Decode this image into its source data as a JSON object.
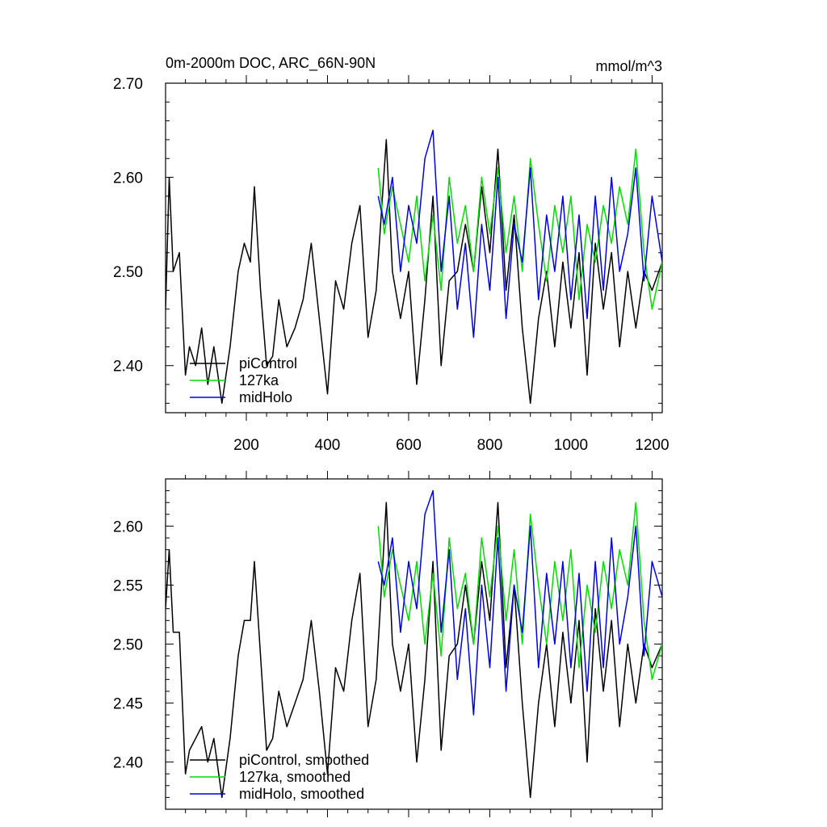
{
  "chart_data": [
    {
      "type": "line",
      "title": "0m-2000m DOC, ARC_66N-90N",
      "units_label": "mmol/m^3",
      "xlim": [
        1,
        1225
      ],
      "ylim": [
        2.35,
        2.7
      ],
      "x_ticks": [
        200,
        400,
        600,
        800,
        1000,
        1200
      ],
      "x_tick_labels": [
        "200",
        "400",
        "600",
        "800",
        "1000",
        "1200"
      ],
      "y_ticks": [
        2.4,
        2.5,
        2.6,
        2.7
      ],
      "y_tick_labels": [
        "2.40",
        "2.50",
        "2.60",
        "2.70"
      ],
      "legend": [
        "piControl",
        "127ka",
        "midHolo"
      ],
      "series": [
        {
          "name": "piControl",
          "color": "#000000",
          "x": [
            1,
            10,
            20,
            35,
            50,
            60,
            75,
            90,
            105,
            120,
            140,
            160,
            180,
            195,
            210,
            220,
            235,
            250,
            265,
            280,
            300,
            320,
            340,
            360,
            380,
            400,
            420,
            440,
            460,
            480,
            500,
            520,
            545,
            560,
            580,
            600,
            620,
            640,
            660,
            680,
            700,
            720,
            740,
            760,
            780,
            800,
            820,
            840,
            860,
            880,
            900,
            920,
            940,
            960,
            980,
            1000,
            1020,
            1040,
            1060,
            1080,
            1100,
            1120,
            1140,
            1160,
            1180,
            1200,
            1225
          ],
          "values": [
            2.46,
            2.6,
            2.5,
            2.52,
            2.39,
            2.42,
            2.4,
            2.44,
            2.38,
            2.42,
            2.36,
            2.42,
            2.5,
            2.53,
            2.51,
            2.59,
            2.48,
            2.4,
            2.41,
            2.47,
            2.42,
            2.44,
            2.47,
            2.53,
            2.45,
            2.37,
            2.49,
            2.46,
            2.53,
            2.57,
            2.43,
            2.48,
            2.64,
            2.5,
            2.45,
            2.5,
            2.38,
            2.47,
            2.58,
            2.4,
            2.49,
            2.5,
            2.55,
            2.5,
            2.59,
            2.52,
            2.63,
            2.48,
            2.56,
            2.44,
            2.36,
            2.45,
            2.5,
            2.42,
            2.51,
            2.44,
            2.52,
            2.39,
            2.53,
            2.46,
            2.52,
            2.42,
            2.5,
            2.44,
            2.5,
            2.48,
            2.51
          ]
        },
        {
          "name": "127ka",
          "color": "#00dd00",
          "x": [
            525,
            540,
            560,
            580,
            600,
            620,
            640,
            660,
            680,
            700,
            720,
            740,
            760,
            780,
            800,
            820,
            840,
            860,
            880,
            900,
            920,
            940,
            960,
            980,
            1000,
            1020,
            1040,
            1060,
            1080,
            1100,
            1120,
            1140,
            1160,
            1180,
            1200,
            1225
          ],
          "values": [
            2.61,
            2.54,
            2.59,
            2.55,
            2.51,
            2.58,
            2.49,
            2.56,
            2.48,
            2.6,
            2.53,
            2.57,
            2.5,
            2.6,
            2.54,
            2.61,
            2.52,
            2.58,
            2.5,
            2.62,
            2.55,
            2.49,
            2.57,
            2.52,
            2.58,
            2.47,
            2.55,
            2.51,
            2.57,
            2.53,
            2.59,
            2.55,
            2.63,
            2.52,
            2.46,
            2.51
          ]
        },
        {
          "name": "midHolo",
          "color": "#0000dd",
          "x": [
            525,
            540,
            560,
            580,
            600,
            620,
            640,
            660,
            680,
            700,
            720,
            740,
            760,
            780,
            800,
            820,
            840,
            860,
            880,
            900,
            920,
            940,
            960,
            980,
            1000,
            1020,
            1040,
            1060,
            1080,
            1100,
            1120,
            1140,
            1160,
            1180,
            1200,
            1225
          ],
          "values": [
            2.58,
            2.55,
            2.6,
            2.5,
            2.57,
            2.53,
            2.62,
            2.65,
            2.5,
            2.58,
            2.46,
            2.53,
            2.43,
            2.55,
            2.48,
            2.6,
            2.45,
            2.55,
            2.51,
            2.61,
            2.47,
            2.56,
            2.5,
            2.58,
            2.47,
            2.56,
            2.45,
            2.58,
            2.48,
            2.6,
            2.5,
            2.54,
            2.61,
            2.49,
            2.58,
            2.51
          ]
        }
      ]
    },
    {
      "type": "line",
      "title": "",
      "xlim": [
        1,
        1225
      ],
      "ylim": [
        2.36,
        2.64
      ],
      "x_ticks": [
        200,
        400,
        600,
        800,
        1000,
        1200
      ],
      "x_tick_labels": [
        "",
        "",
        "",
        "",
        "",
        ""
      ],
      "y_ticks": [
        2.4,
        2.45,
        2.5,
        2.55,
        2.6
      ],
      "y_tick_labels": [
        "2.40",
        "2.45",
        "2.50",
        "2.55",
        "2.60"
      ],
      "legend": [
        "piControl, smoothed",
        "127ka, smoothed",
        "midHolo, smoothed"
      ],
      "series": [
        {
          "name": "piControl, smoothed",
          "color": "#000000",
          "x": [
            1,
            10,
            20,
            35,
            50,
            60,
            75,
            90,
            105,
            120,
            140,
            160,
            180,
            195,
            210,
            220,
            235,
            250,
            265,
            280,
            300,
            320,
            340,
            360,
            380,
            400,
            420,
            440,
            460,
            480,
            500,
            520,
            545,
            560,
            580,
            600,
            620,
            640,
            660,
            680,
            700,
            720,
            740,
            760,
            780,
            800,
            820,
            840,
            860,
            880,
            900,
            920,
            940,
            960,
            980,
            1000,
            1020,
            1040,
            1060,
            1080,
            1100,
            1120,
            1140,
            1160,
            1180,
            1200,
            1225
          ],
          "values": [
            2.53,
            2.58,
            2.51,
            2.51,
            2.39,
            2.41,
            2.42,
            2.43,
            2.4,
            2.42,
            2.37,
            2.42,
            2.49,
            2.52,
            2.52,
            2.57,
            2.49,
            2.41,
            2.42,
            2.46,
            2.43,
            2.45,
            2.47,
            2.52,
            2.46,
            2.39,
            2.48,
            2.46,
            2.52,
            2.56,
            2.43,
            2.47,
            2.62,
            2.5,
            2.46,
            2.5,
            2.4,
            2.47,
            2.57,
            2.41,
            2.49,
            2.5,
            2.55,
            2.5,
            2.57,
            2.52,
            2.62,
            2.48,
            2.55,
            2.45,
            2.37,
            2.45,
            2.5,
            2.43,
            2.51,
            2.45,
            2.52,
            2.4,
            2.53,
            2.46,
            2.52,
            2.43,
            2.5,
            2.45,
            2.5,
            2.48,
            2.5
          ]
        },
        {
          "name": "127ka, smoothed",
          "color": "#00dd00",
          "x": [
            525,
            540,
            560,
            580,
            600,
            620,
            640,
            660,
            680,
            700,
            720,
            740,
            760,
            780,
            800,
            820,
            840,
            860,
            880,
            900,
            920,
            940,
            960,
            980,
            1000,
            1020,
            1040,
            1060,
            1080,
            1100,
            1120,
            1140,
            1160,
            1180,
            1200,
            1225
          ],
          "values": [
            2.6,
            2.54,
            2.58,
            2.55,
            2.52,
            2.57,
            2.5,
            2.56,
            2.49,
            2.59,
            2.53,
            2.56,
            2.5,
            2.59,
            2.54,
            2.6,
            2.52,
            2.58,
            2.5,
            2.61,
            2.55,
            2.5,
            2.57,
            2.52,
            2.58,
            2.48,
            2.55,
            2.51,
            2.57,
            2.53,
            2.58,
            2.55,
            2.62,
            2.52,
            2.47,
            2.5
          ]
        },
        {
          "name": "midHolo, smoothed",
          "color": "#0000dd",
          "x": [
            525,
            540,
            560,
            580,
            600,
            620,
            640,
            660,
            680,
            700,
            720,
            740,
            760,
            780,
            800,
            820,
            840,
            860,
            880,
            900,
            920,
            940,
            960,
            980,
            1000,
            1020,
            1040,
            1060,
            1080,
            1100,
            1120,
            1140,
            1160,
            1180,
            1200,
            1225
          ],
          "values": [
            2.57,
            2.55,
            2.59,
            2.51,
            2.57,
            2.53,
            2.61,
            2.63,
            2.51,
            2.58,
            2.47,
            2.53,
            2.44,
            2.55,
            2.48,
            2.59,
            2.46,
            2.55,
            2.51,
            2.6,
            2.48,
            2.56,
            2.5,
            2.57,
            2.48,
            2.56,
            2.46,
            2.57,
            2.48,
            2.59,
            2.5,
            2.54,
            2.6,
            2.49,
            2.57,
            2.54
          ]
        }
      ]
    }
  ]
}
